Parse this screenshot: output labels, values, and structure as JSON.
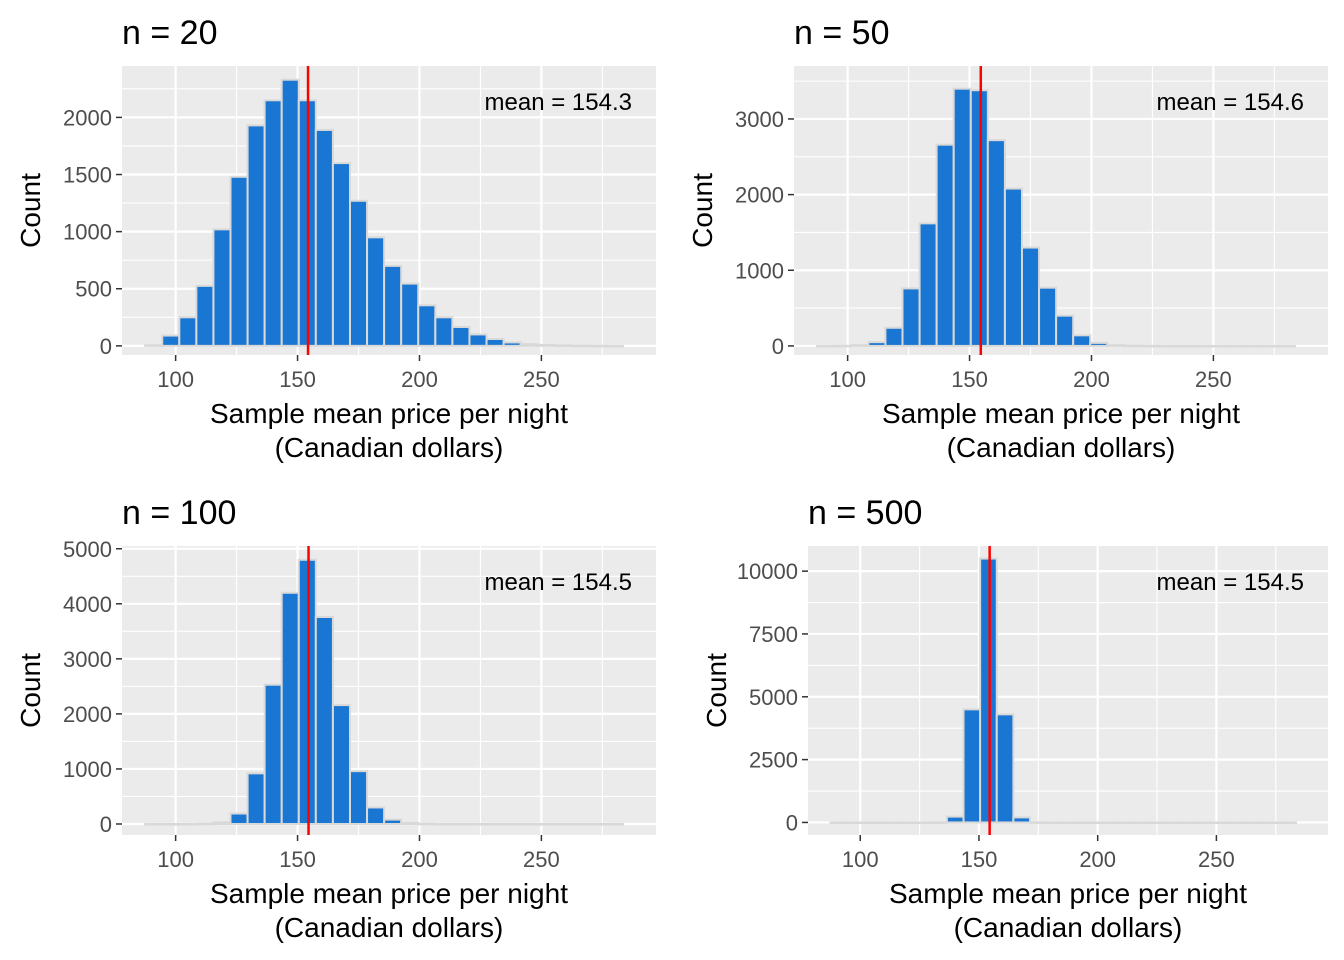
{
  "colors": {
    "panel_background": "#ebebeb",
    "grid": "#ffffff",
    "bar_fill": "#1976d2",
    "bar_outline": "#d9d9d9",
    "mean_line": "#ff0000",
    "tick_text": "#4d4d4d"
  },
  "chart_data": [
    {
      "type": "bar",
      "title": "n = 20",
      "xlabel": "Sample mean price per night\n(Canadian dollars)",
      "ylabel": "Count",
      "xlim": [
        78,
        297
      ],
      "ylim": [
        -80,
        2450
      ],
      "x_ticks": [
        "100",
        "150",
        "200",
        "250"
      ],
      "y_ticks": [
        "0",
        "500",
        "1000",
        "1500",
        "2000"
      ],
      "mean_value": 154.3,
      "annotation": "mean =  154.3",
      "bin_width": 7,
      "bin_centers": [
        91,
        98,
        105,
        112,
        119,
        126,
        133,
        140,
        147,
        154,
        161,
        168,
        175,
        182,
        189,
        196,
        203,
        210,
        217,
        224,
        231,
        238,
        245,
        252,
        259,
        266,
        273,
        280
      ],
      "counts": [
        5,
        90,
        250,
        525,
        1020,
        1480,
        1930,
        2150,
        2330,
        2150,
        1890,
        1600,
        1270,
        950,
        700,
        545,
        355,
        250,
        165,
        100,
        60,
        30,
        15,
        8,
        4,
        2,
        1,
        0
      ]
    },
    {
      "type": "bar",
      "title": "n = 50",
      "xlabel": "Sample mean price per night\n(Canadian dollars)",
      "ylabel": "Count",
      "xlim": [
        78,
        297
      ],
      "ylim": [
        -120,
        3700
      ],
      "x_ticks": [
        "100",
        "150",
        "200",
        "250"
      ],
      "y_ticks": [
        "0",
        "1000",
        "2000",
        "3000"
      ],
      "mean_value": 154.6,
      "annotation": "mean =  154.6",
      "bin_width": 7,
      "bin_centers": [
        91,
        98,
        105,
        112,
        119,
        126,
        133,
        140,
        147,
        154,
        161,
        168,
        175,
        182,
        189,
        196,
        203,
        210,
        217,
        224,
        231,
        238,
        245,
        252,
        259,
        266,
        273,
        280
      ],
      "counts": [
        0,
        2,
        10,
        50,
        240,
        760,
        1620,
        2660,
        3400,
        3380,
        2720,
        2080,
        1300,
        770,
        400,
        140,
        40,
        10,
        3,
        1,
        0,
        0,
        0,
        0,
        0,
        0,
        0,
        0
      ]
    },
    {
      "type": "bar",
      "title": "n = 100",
      "xlabel": "Sample mean price per night\n(Canadian dollars)",
      "ylabel": "Count",
      "xlim": [
        78,
        297
      ],
      "ylim": [
        -200,
        5050
      ],
      "x_ticks": [
        "100",
        "150",
        "200",
        "250"
      ],
      "y_ticks": [
        "0",
        "1000",
        "2000",
        "3000",
        "4000",
        "5000"
      ],
      "mean_value": 154.5,
      "annotation": "mean =  154.5",
      "bin_width": 7,
      "bin_centers": [
        91,
        98,
        105,
        112,
        119,
        126,
        133,
        140,
        147,
        154,
        161,
        168,
        175,
        182,
        189,
        196,
        203,
        210,
        217,
        224,
        231,
        238,
        245,
        252,
        259,
        266,
        273,
        280
      ],
      "counts": [
        0,
        0,
        0,
        5,
        30,
        190,
        920,
        2530,
        4200,
        4800,
        3760,
        2160,
        960,
        300,
        80,
        20,
        5,
        0,
        0,
        0,
        0,
        0,
        0,
        0,
        0,
        0,
        0,
        0
      ]
    },
    {
      "type": "bar",
      "title": "n = 500",
      "xlabel": "Sample mean price per night\n(Canadian dollars)",
      "ylabel": "Count",
      "xlim": [
        78,
        297
      ],
      "ylim": [
        -500,
        11000
      ],
      "x_ticks": [
        "100",
        "150",
        "200",
        "250"
      ],
      "y_ticks": [
        "0",
        "2500",
        "5000",
        "7500",
        "10000"
      ],
      "mean_value": 154.5,
      "annotation": "mean =  154.5",
      "bin_width": 7,
      "bin_centers": [
        91,
        98,
        105,
        112,
        119,
        126,
        133,
        140,
        147,
        154,
        161,
        168,
        175,
        182,
        189,
        196,
        203,
        210,
        217,
        224,
        231,
        238,
        245,
        252,
        259,
        266,
        273,
        280
      ],
      "counts": [
        0,
        0,
        0,
        0,
        0,
        0,
        5,
        230,
        4500,
        10500,
        4300,
        200,
        5,
        0,
        0,
        0,
        0,
        0,
        0,
        0,
        0,
        0,
        0,
        0,
        0,
        0,
        0,
        0
      ]
    }
  ]
}
